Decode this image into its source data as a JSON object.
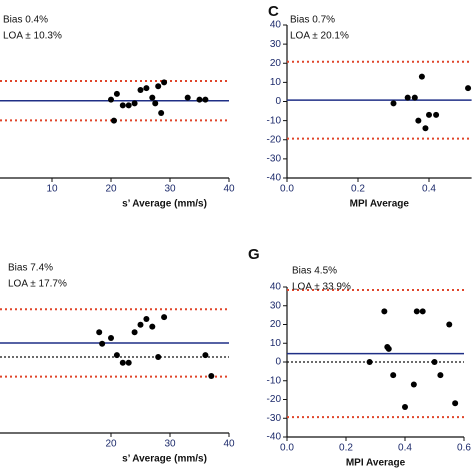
{
  "chart_data": [
    {
      "type": "scatter",
      "bias_label": "Bias 0.4%",
      "loa_label": "LOA ± 10.3%",
      "bias": 0.4,
      "loa": 10.3,
      "xlabel": "s’ Average (mm/s)",
      "xlim": [
        0,
        40
      ],
      "ylim": [
        -40,
        40
      ],
      "xticks": [
        10,
        20,
        30,
        40
      ],
      "yticks": [],
      "zero_line": false,
      "color": "#000000",
      "x": [
        20,
        20.5,
        21,
        22,
        23,
        24,
        25,
        26,
        27,
        27.5,
        28,
        28.5,
        29,
        33,
        35,
        36
      ],
      "values": [
        1,
        -10,
        4,
        -2,
        -2,
        -1,
        6,
        7,
        2,
        -1,
        8,
        -6,
        10,
        2,
        1,
        1
      ]
    },
    {
      "type": "scatter",
      "letter": "C",
      "bias_label": "Bias 0.7%",
      "loa_label": "LOA ± 20.1%",
      "bias": 0.7,
      "loa": 20.1,
      "xlabel": "MPI Average",
      "xlim": [
        0,
        0.52
      ],
      "ylim": [
        -40,
        40
      ],
      "xticks": [
        {
          "value": 0,
          "label": "0.0"
        },
        0.2,
        0.4
      ],
      "yticks": [
        -40,
        -30,
        -20,
        -10,
        0,
        10,
        20,
        30,
        40
      ],
      "zero_line": false,
      "color": "#000000",
      "x": [
        0.3,
        0.34,
        0.36,
        0.37,
        0.38,
        0.39,
        0.4,
        0.42,
        0.51
      ],
      "values": [
        -1,
        2,
        2,
        -10,
        13,
        -14,
        -7,
        -7,
        7
      ]
    },
    {
      "type": "scatter",
      "bias_label": "Bias 7.4%",
      "loa_label": "LOA ± 17.7%",
      "bias": 7.4,
      "loa": 17.7,
      "xlabel": "s’ Average (mm/s)",
      "xlim": [
        0,
        40
      ],
      "ylim": [
        -40,
        50
      ],
      "xticks": [
        20,
        30,
        40
      ],
      "yticks": [],
      "zero_line": true,
      "color": "#000000",
      "x": [
        18,
        18.5,
        20,
        21,
        22,
        23,
        24,
        25,
        26,
        27,
        28,
        29,
        36,
        37
      ],
      "values": [
        13,
        7,
        10,
        1,
        -3,
        -3,
        13,
        17,
        20,
        16,
        0,
        21,
        1,
        -10
      ]
    },
    {
      "type": "scatter",
      "letter": "G",
      "bias_label": "Bias 4.5%",
      "loa_label": "LOA ± 33.9%",
      "bias": 4.5,
      "loa": 33.9,
      "xlabel": "MPI Average",
      "xlim": [
        0,
        0.6
      ],
      "ylim": [
        -40,
        40
      ],
      "xticks": [
        {
          "value": 0,
          "label": "0.0"
        },
        0.2,
        0.4,
        0.6
      ],
      "yticks": [
        -40,
        -30,
        -20,
        -10,
        0,
        10,
        20,
        30,
        40
      ],
      "zero_line": true,
      "color": "#000000",
      "x": [
        0.28,
        0.33,
        0.34,
        0.345,
        0.36,
        0.4,
        0.43,
        0.44,
        0.46,
        0.5,
        0.52,
        0.55,
        0.57
      ],
      "values": [
        0,
        27,
        8,
        7,
        -7,
        -24,
        -12,
        27,
        27,
        0,
        -7,
        20,
        -22
      ]
    }
  ]
}
